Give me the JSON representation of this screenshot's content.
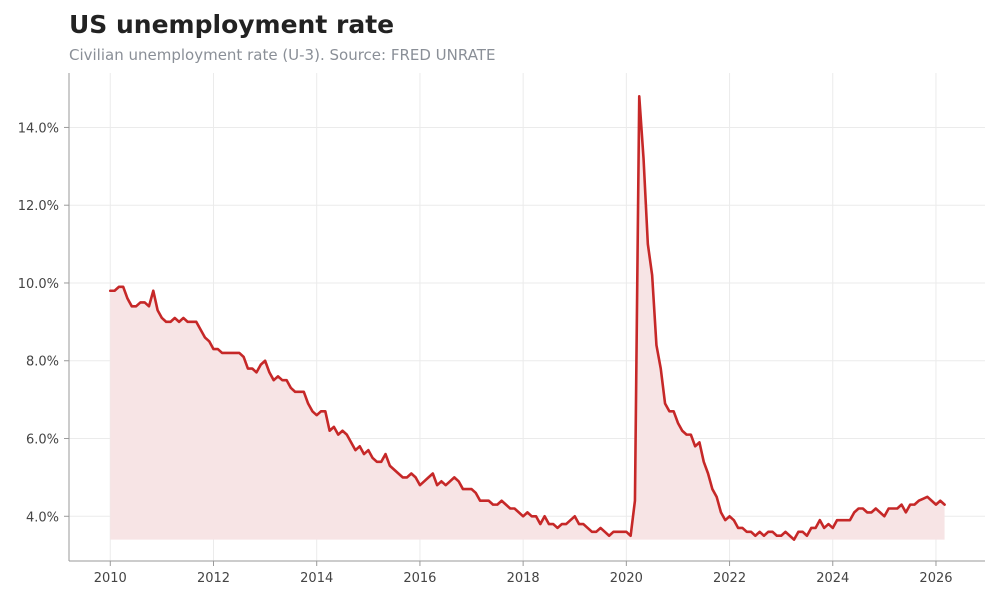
{
  "title": "US unemployment rate",
  "subtitle": "Civilian unemployment rate (U-3). Source: FRED UNRATE",
  "colors": {
    "line": "#c62828",
    "fill": "#f7e4e5",
    "grid": "#ebebeb",
    "axis": "#9a9a9a"
  },
  "chart_data": {
    "type": "area",
    "title": "US unemployment rate",
    "subtitle": "Civilian unemployment rate (U-3). Source: FRED UNRATE",
    "xlabel": "",
    "ylabel": "",
    "xlim": [
      2009.2,
      2026.95
    ],
    "ylim": [
      2.85,
      15.4
    ],
    "x_ticks": [
      2010,
      2012,
      2014,
      2016,
      2018,
      2020,
      2022,
      2024,
      2026
    ],
    "x_tick_labels": [
      "2010",
      "2012",
      "2014",
      "2016",
      "2018",
      "2020",
      "2022",
      "2024",
      "2026"
    ],
    "y_ticks": [
      4,
      6,
      8,
      10,
      12,
      14
    ],
    "y_tick_labels": [
      "4.0%",
      "6.0%",
      "8.0%",
      "10.0%",
      "12.0%",
      "14.0%"
    ],
    "grid": true,
    "legend": false,
    "fill_baseline": 3.4,
    "series": [
      {
        "x_start": "2010-01",
        "frequency": "monthly",
        "values": [
          9.8,
          9.8,
          9.9,
          9.9,
          9.6,
          9.4,
          9.4,
          9.5,
          9.5,
          9.4,
          9.8,
          9.3,
          9.1,
          9.0,
          9.0,
          9.1,
          9.0,
          9.1,
          9.0,
          9.0,
          9.0,
          8.8,
          8.6,
          8.5,
          8.3,
          8.3,
          8.2,
          8.2,
          8.2,
          8.2,
          8.2,
          8.1,
          7.8,
          7.8,
          7.7,
          7.9,
          8.0,
          7.7,
          7.5,
          7.6,
          7.5,
          7.5,
          7.3,
          7.2,
          7.2,
          7.2,
          6.9,
          6.7,
          6.6,
          6.7,
          6.7,
          6.2,
          6.3,
          6.1,
          6.2,
          6.1,
          5.9,
          5.7,
          5.8,
          5.6,
          5.7,
          5.5,
          5.4,
          5.4,
          5.6,
          5.3,
          5.2,
          5.1,
          5.0,
          5.0,
          5.1,
          5.0,
          4.8,
          4.9,
          5.0,
          5.1,
          4.8,
          4.9,
          4.8,
          4.9,
          5.0,
          4.9,
          4.7,
          4.7,
          4.7,
          4.6,
          4.4,
          4.4,
          4.4,
          4.3,
          4.3,
          4.4,
          4.3,
          4.2,
          4.2,
          4.1,
          4.0,
          4.1,
          4.0,
          4.0,
          3.8,
          4.0,
          3.8,
          3.8,
          3.7,
          3.8,
          3.8,
          3.9,
          4.0,
          3.8,
          3.8,
          3.7,
          3.6,
          3.6,
          3.7,
          3.6,
          3.5,
          3.6,
          3.6,
          3.6,
          3.6,
          3.5,
          4.4,
          14.8,
          13.2,
          11.0,
          10.2,
          8.4,
          7.8,
          6.9,
          6.7,
          6.7,
          6.4,
          6.2,
          6.1,
          6.1,
          5.8,
          5.9,
          5.4,
          5.1,
          4.7,
          4.5,
          4.1,
          3.9,
          4.0,
          3.9,
          3.7,
          3.7,
          3.6,
          3.6,
          3.5,
          3.6,
          3.5,
          3.6,
          3.6,
          3.5,
          3.5,
          3.6,
          3.5,
          3.4,
          3.6,
          3.6,
          3.5,
          3.7,
          3.7,
          3.9,
          3.7,
          3.8,
          3.7,
          3.9,
          3.9,
          3.9,
          3.9,
          4.1,
          4.2,
          4.2,
          4.1,
          4.1,
          4.2,
          4.1,
          4.0,
          4.2,
          4.2,
          4.2,
          4.3,
          4.1,
          4.3,
          4.3,
          4.4,
          4.45,
          4.5,
          4.4,
          4.3,
          4.4,
          4.3
        ]
      }
    ]
  }
}
